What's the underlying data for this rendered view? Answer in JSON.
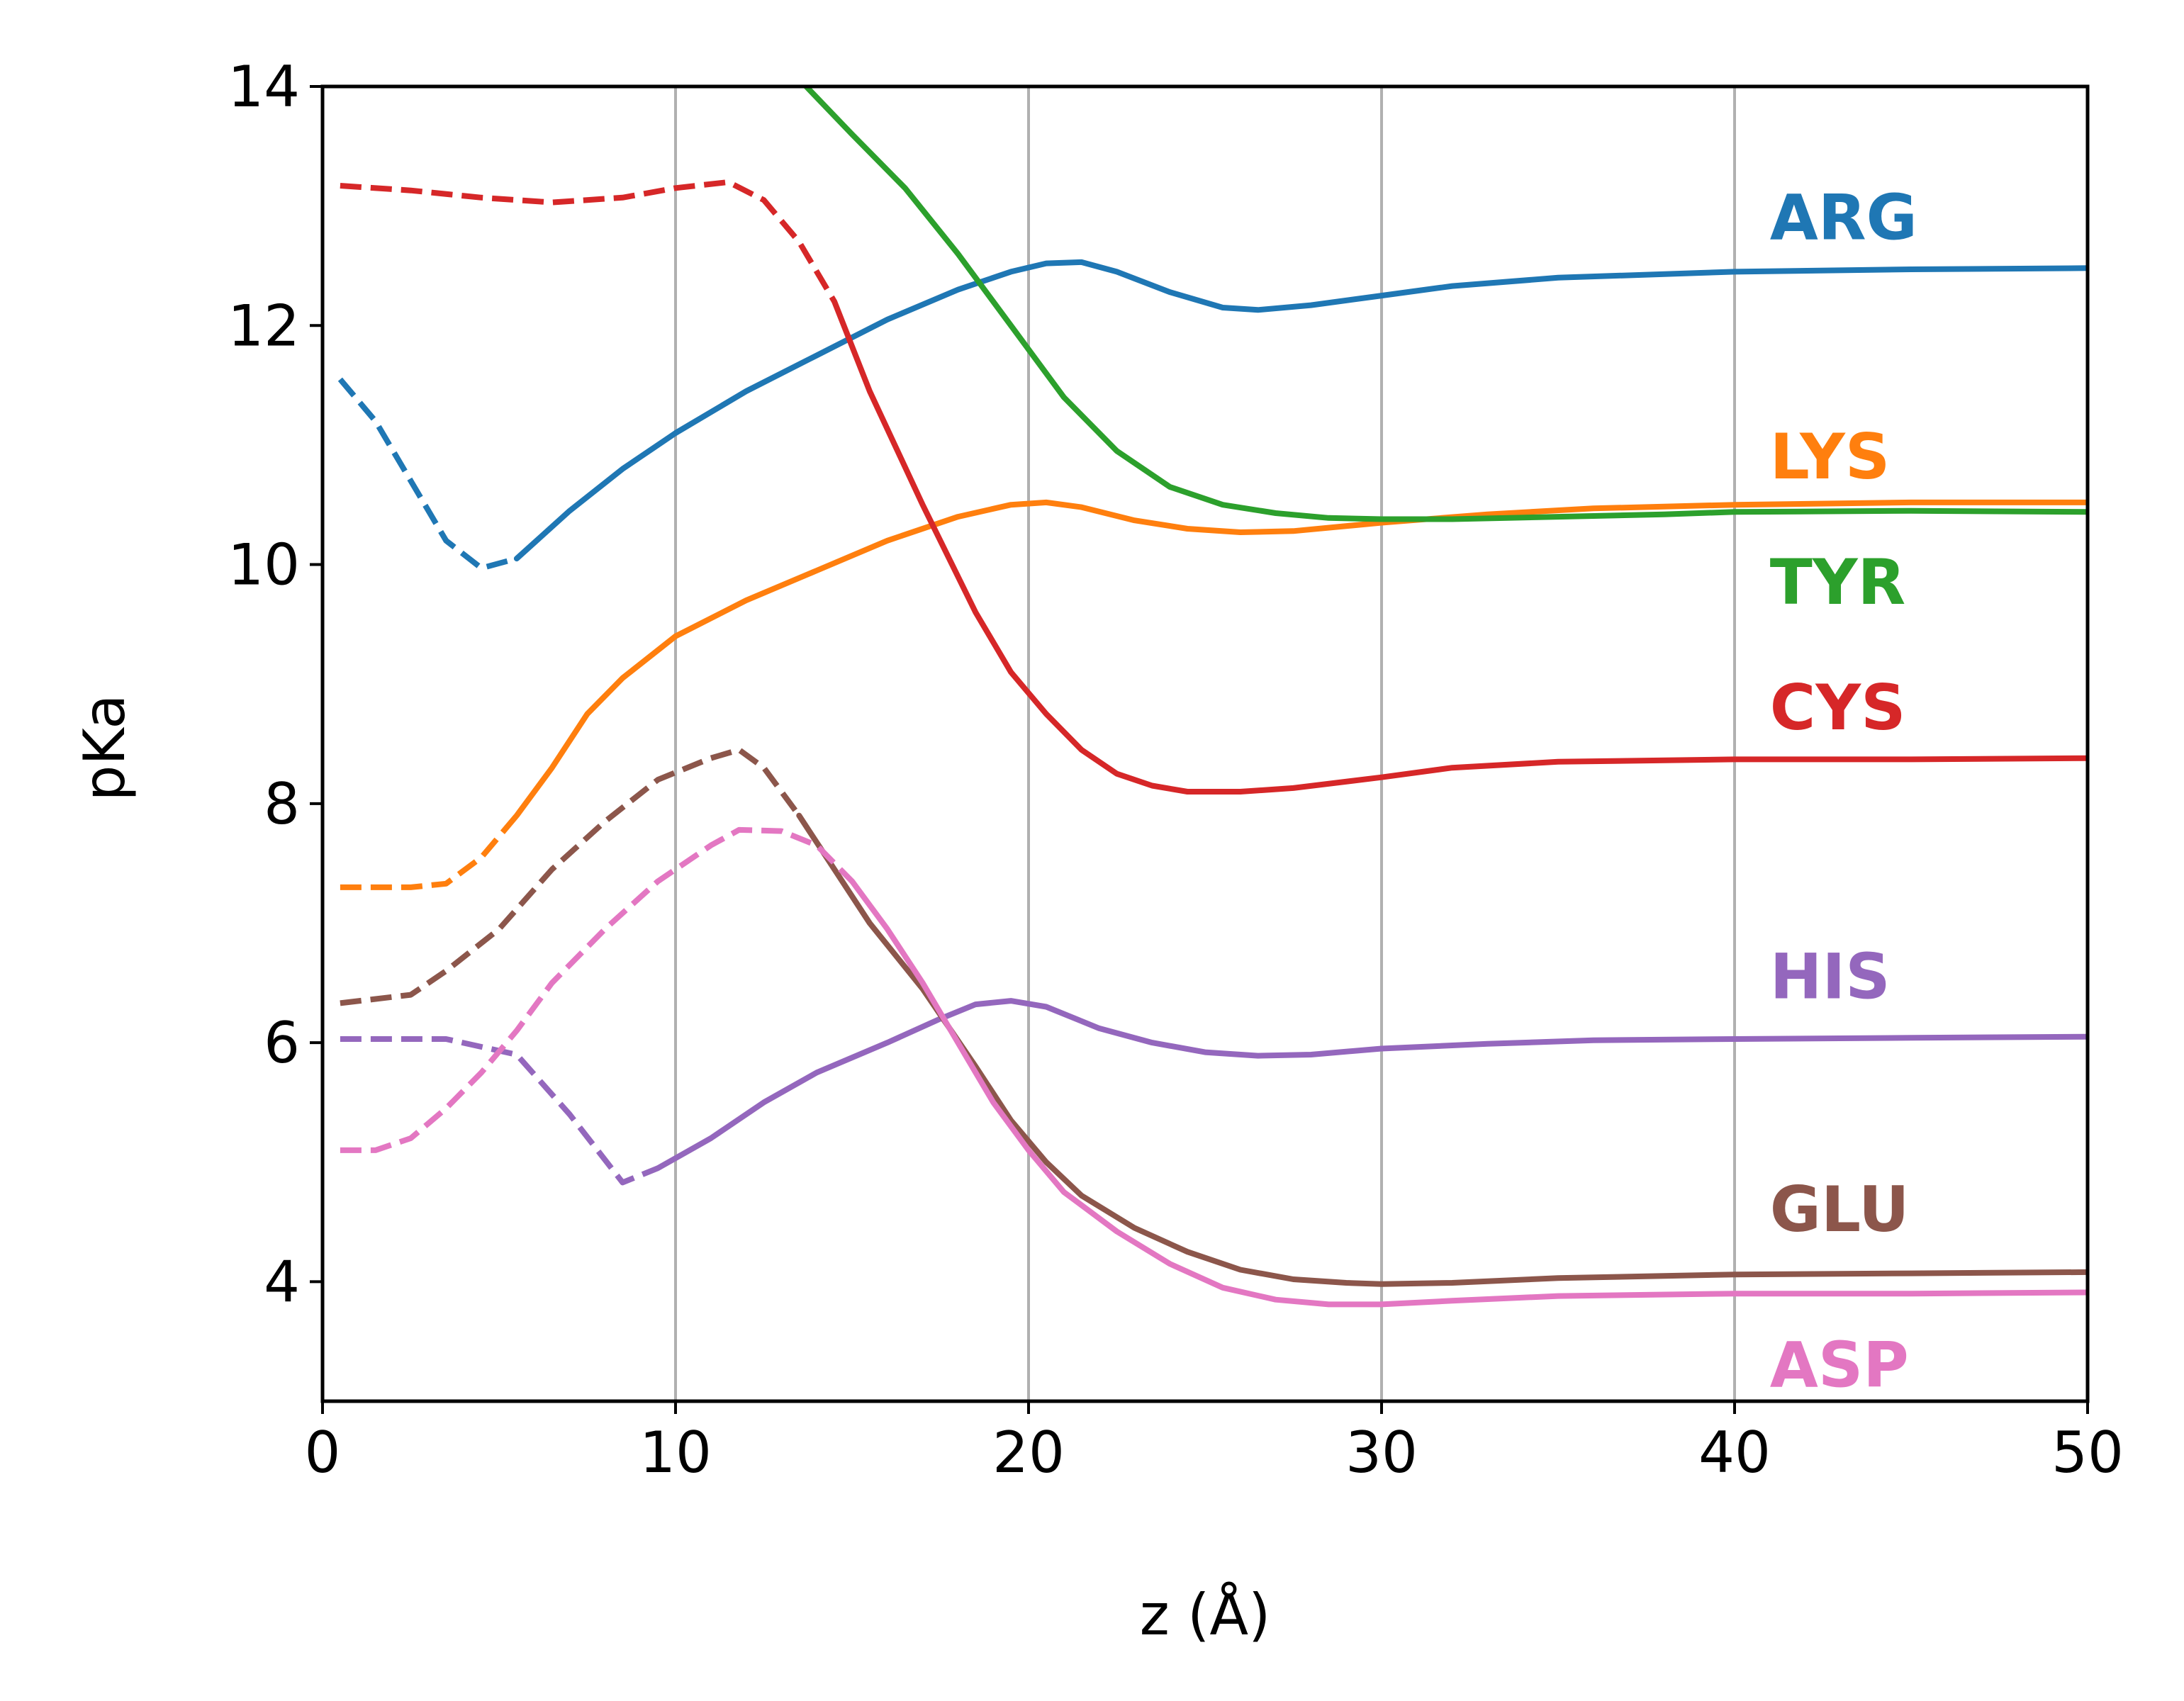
{
  "chart_data": {
    "type": "line",
    "title": "",
    "xlabel": "z (Å)",
    "ylabel": "pKa",
    "xlim": [
      0,
      50
    ],
    "ylim": [
      3,
      14
    ],
    "xticks": [
      0,
      10,
      20,
      30,
      40,
      50
    ],
    "yticks": [
      4,
      6,
      8,
      10,
      12,
      14
    ],
    "x_tick_labels": [
      "0",
      "10",
      "20",
      "30",
      "40",
      "50"
    ],
    "y_tick_labels": [
      "4",
      "6",
      "8",
      "10",
      "12",
      "14"
    ],
    "vertical_grid": true,
    "horizontal_grid": false,
    "legend": "inline labels at right",
    "series": [
      {
        "name": "ARG",
        "color": "#1f77b4",
        "label_value": 12.9,
        "dashed_until": 5.5,
        "points": [
          [
            0.5,
            11.55
          ],
          [
            1.5,
            11.2
          ],
          [
            2.5,
            10.7
          ],
          [
            3.5,
            10.2
          ],
          [
            4.5,
            9.97
          ],
          [
            5.5,
            10.05
          ],
          [
            7,
            10.45
          ],
          [
            8.5,
            10.8
          ],
          [
            10,
            11.1
          ],
          [
            12,
            11.45
          ],
          [
            14,
            11.75
          ],
          [
            16,
            12.05
          ],
          [
            18,
            12.3
          ],
          [
            19.5,
            12.45
          ],
          [
            20.5,
            12.52
          ],
          [
            21.5,
            12.53
          ],
          [
            22.5,
            12.45
          ],
          [
            24,
            12.28
          ],
          [
            25.5,
            12.15
          ],
          [
            26.5,
            12.13
          ],
          [
            28,
            12.17
          ],
          [
            30,
            12.25
          ],
          [
            32,
            12.33
          ],
          [
            35,
            12.4
          ],
          [
            40,
            12.45
          ],
          [
            45,
            12.47
          ],
          [
            50,
            12.48
          ]
        ]
      },
      {
        "name": "LYS",
        "color": "#ff7f0e",
        "label_value": 10.9,
        "dashed_until": 5.0,
        "points": [
          [
            0.5,
            7.3
          ],
          [
            2.5,
            7.3
          ],
          [
            3.5,
            7.33
          ],
          [
            4.5,
            7.55
          ],
          [
            5.5,
            7.9
          ],
          [
            6.5,
            8.3
          ],
          [
            7.5,
            8.75
          ],
          [
            8.5,
            9.05
          ],
          [
            10,
            9.4
          ],
          [
            12,
            9.7
          ],
          [
            14,
            9.95
          ],
          [
            16,
            10.2
          ],
          [
            18,
            10.4
          ],
          [
            19.5,
            10.5
          ],
          [
            20.5,
            10.52
          ],
          [
            21.5,
            10.48
          ],
          [
            23,
            10.37
          ],
          [
            24.5,
            10.3
          ],
          [
            26,
            10.27
          ],
          [
            27.5,
            10.28
          ],
          [
            30,
            10.35
          ],
          [
            33,
            10.42
          ],
          [
            36,
            10.47
          ],
          [
            40,
            10.5
          ],
          [
            45,
            10.52
          ],
          [
            50,
            10.52
          ]
        ]
      },
      {
        "name": "TYR",
        "color": "#2ca02c",
        "label_value": 9.85,
        "dashed_until": null,
        "points": [
          [
            13.7,
            14.0
          ],
          [
            15,
            13.6
          ],
          [
            16.5,
            13.15
          ],
          [
            18,
            12.6
          ],
          [
            19.5,
            12.0
          ],
          [
            21,
            11.4
          ],
          [
            22.5,
            10.95
          ],
          [
            24,
            10.65
          ],
          [
            25.5,
            10.5
          ],
          [
            27,
            10.43
          ],
          [
            28.5,
            10.39
          ],
          [
            30,
            10.38
          ],
          [
            32,
            10.38
          ],
          [
            35,
            10.4
          ],
          [
            38,
            10.42
          ],
          [
            40,
            10.44
          ],
          [
            45,
            10.45
          ],
          [
            50,
            10.44
          ]
        ]
      },
      {
        "name": "CYS",
        "color": "#d62728",
        "label_value": 8.8,
        "dashed_until": 14.0,
        "points": [
          [
            0.5,
            13.17
          ],
          [
            2.5,
            13.13
          ],
          [
            4.5,
            13.07
          ],
          [
            6.5,
            13.03
          ],
          [
            8.5,
            13.07
          ],
          [
            10,
            13.15
          ],
          [
            11.5,
            13.2
          ],
          [
            12.5,
            13.05
          ],
          [
            13.5,
            12.7
          ],
          [
            14.5,
            12.2
          ],
          [
            15.5,
            11.45
          ],
          [
            17,
            10.5
          ],
          [
            18.5,
            9.6
          ],
          [
            19.5,
            9.1
          ],
          [
            20.5,
            8.75
          ],
          [
            21.5,
            8.45
          ],
          [
            22.5,
            8.25
          ],
          [
            23.5,
            8.15
          ],
          [
            24.5,
            8.1
          ],
          [
            26,
            8.1
          ],
          [
            27.5,
            8.13
          ],
          [
            30,
            8.22
          ],
          [
            32,
            8.3
          ],
          [
            35,
            8.35
          ],
          [
            40,
            8.37
          ],
          [
            45,
            8.37
          ],
          [
            50,
            8.38
          ]
        ]
      },
      {
        "name": "HIS",
        "color": "#9467bd",
        "label_value": 6.55,
        "dashed_until": 9.0,
        "points": [
          [
            0.5,
            6.03
          ],
          [
            3.5,
            6.03
          ],
          [
            5.5,
            5.9
          ],
          [
            7,
            5.4
          ],
          [
            8.5,
            4.83
          ],
          [
            9.5,
            4.95
          ],
          [
            11,
            5.2
          ],
          [
            12.5,
            5.5
          ],
          [
            14,
            5.75
          ],
          [
            16,
            6.0
          ],
          [
            17.5,
            6.2
          ],
          [
            18.5,
            6.32
          ],
          [
            19.5,
            6.35
          ],
          [
            20.5,
            6.3
          ],
          [
            22,
            6.12
          ],
          [
            23.5,
            6.0
          ],
          [
            25,
            5.92
          ],
          [
            26.5,
            5.89
          ],
          [
            28,
            5.9
          ],
          [
            30,
            5.95
          ],
          [
            33,
            5.99
          ],
          [
            36,
            6.02
          ],
          [
            40,
            6.03
          ],
          [
            45,
            6.04
          ],
          [
            50,
            6.05
          ]
        ]
      },
      {
        "name": "GLU",
        "color": "#8c564b",
        "label_value": 4.6,
        "dashed_until": 13.0,
        "points": [
          [
            0.5,
            6.33
          ],
          [
            2.5,
            6.4
          ],
          [
            3.5,
            6.6
          ],
          [
            5,
            6.95
          ],
          [
            6.5,
            7.45
          ],
          [
            8,
            7.85
          ],
          [
            9.5,
            8.2
          ],
          [
            11,
            8.38
          ],
          [
            11.8,
            8.45
          ],
          [
            12.5,
            8.3
          ],
          [
            13.5,
            7.9
          ],
          [
            14.5,
            7.45
          ],
          [
            15.5,
            7.0
          ],
          [
            17,
            6.45
          ],
          [
            18.5,
            5.8
          ],
          [
            19.5,
            5.35
          ],
          [
            20.5,
            5.0
          ],
          [
            21.5,
            4.72
          ],
          [
            23,
            4.45
          ],
          [
            24.5,
            4.25
          ],
          [
            26,
            4.1
          ],
          [
            27.5,
            4.02
          ],
          [
            29,
            3.99
          ],
          [
            30,
            3.98
          ],
          [
            32,
            3.99
          ],
          [
            35,
            4.03
          ],
          [
            40,
            4.06
          ],
          [
            45,
            4.07
          ],
          [
            50,
            4.08
          ]
        ]
      },
      {
        "name": "ASP",
        "color": "#e377c2",
        "label_value": 3.3,
        "dashed_until": 15.0,
        "points": [
          [
            0.5,
            5.1
          ],
          [
            1.5,
            5.1
          ],
          [
            2.5,
            5.2
          ],
          [
            3.5,
            5.45
          ],
          [
            4.5,
            5.75
          ],
          [
            5.5,
            6.1
          ],
          [
            6.5,
            6.5
          ],
          [
            8,
            6.95
          ],
          [
            9.5,
            7.35
          ],
          [
            11,
            7.65
          ],
          [
            11.8,
            7.78
          ],
          [
            13,
            7.77
          ],
          [
            14,
            7.65
          ],
          [
            15,
            7.35
          ],
          [
            16,
            6.95
          ],
          [
            17,
            6.5
          ],
          [
            18,
            6.0
          ],
          [
            19,
            5.5
          ],
          [
            20,
            5.1
          ],
          [
            21,
            4.75
          ],
          [
            22.5,
            4.42
          ],
          [
            24,
            4.15
          ],
          [
            25.5,
            3.95
          ],
          [
            27,
            3.85
          ],
          [
            28.5,
            3.81
          ],
          [
            30,
            3.81
          ],
          [
            32,
            3.84
          ],
          [
            35,
            3.88
          ],
          [
            40,
            3.9
          ],
          [
            45,
            3.9
          ],
          [
            50,
            3.91
          ]
        ]
      }
    ]
  }
}
